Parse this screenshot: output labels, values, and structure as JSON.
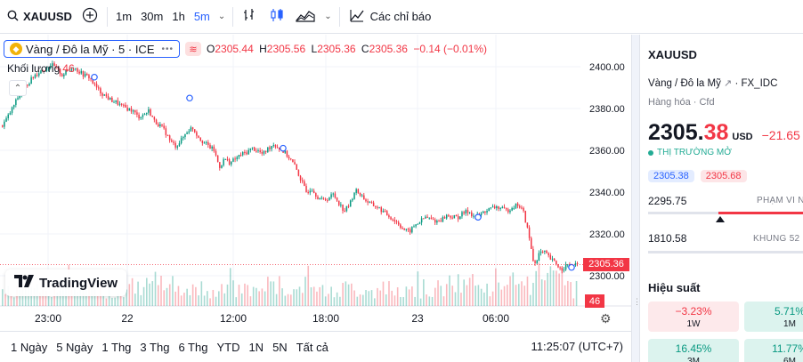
{
  "toolbar": {
    "symbol": "XAUUSD",
    "timeframes": [
      "1m",
      "30m",
      "1h",
      "5m"
    ],
    "active_timeframe": "5m",
    "indicators_label": "Các chỉ báo"
  },
  "legend": {
    "symbol_desc": "Vàng / Đô la Mỹ · 5 · ICE",
    "open_label": "O",
    "open": "2305.44",
    "high_label": "H",
    "high": "2305.56",
    "low_label": "L",
    "low": "2305.36",
    "close_label": "C",
    "close": "2305.36",
    "change": "−0.14 (−0.01%)",
    "volume_label": "Khối lượng",
    "volume": "46"
  },
  "branding": "TradingView",
  "colors": {
    "up": "#089981",
    "down": "#f23645",
    "accent": "#2962ff",
    "grid": "#f0f3fa"
  },
  "chart_data": {
    "type": "candlestick",
    "title": "",
    "xlabel": "",
    "ylabel": "",
    "ylim": [
      2293,
      2404
    ],
    "y_ticks": [
      "2400.00",
      "2380.00",
      "2360.00",
      "2340.00",
      "2320.00",
      "2300.00"
    ],
    "x_ticks": [
      "23:00",
      "22",
      "12:00",
      "18:00",
      "23",
      "06:00"
    ],
    "current_price": "2305.36",
    "volume_value": "46",
    "close_series": [
      2372,
      2376,
      2381,
      2386,
      2390,
      2393,
      2396,
      2398,
      2399,
      2401,
      2399,
      2396,
      2398,
      2400,
      2398,
      2396,
      2395,
      2391,
      2388,
      2386,
      2384,
      2383,
      2381,
      2380,
      2379,
      2376,
      2377,
      2379,
      2374,
      2372,
      2369,
      2364,
      2362,
      2365,
      2369,
      2371,
      2367,
      2364,
      2362,
      2360,
      2352,
      2356,
      2354,
      2356,
      2358,
      2359,
      2361,
      2360,
      2358,
      2361,
      2363,
      2361,
      2359,
      2356,
      2352,
      2346,
      2340,
      2342,
      2338,
      2336,
      2337,
      2339,
      2335,
      2331,
      2334,
      2341,
      2339,
      2336,
      2334,
      2333,
      2331,
      2329,
      2327,
      2325,
      2322,
      2321,
      2324,
      2326,
      2328,
      2327,
      2326,
      2327,
      2329,
      2328,
      2328,
      2330,
      2331,
      2328,
      2329,
      2331,
      2332,
      2333,
      2332,
      2331,
      2333,
      2334,
      2331,
      2320,
      2305,
      2311,
      2311,
      2308,
      2306,
      2303,
      2305,
      2304,
      2305.36
    ]
  },
  "bottombar": {
    "ranges": [
      "1 Ngày",
      "5 Ngày",
      "1 Thg",
      "3 Thg",
      "6 Thg",
      "YTD",
      "1N",
      "5N",
      "Tất cả"
    ],
    "clock": "11:25:07 (UTC+7)"
  },
  "panel": {
    "symbol": "XAUUSD",
    "description": "Vàng / Đô la Mỹ",
    "exchange": "· FX_IDC",
    "type": "Hàng hóa · Cfd",
    "price_main": "2305.",
    "price_last": "38",
    "currency": "USD",
    "change": "−21.65 (",
    "market_status": "THỊ TRƯỜNG MỞ",
    "bid": "2305.38",
    "ask": "2305.68",
    "day_low": "2295.75",
    "day_range_label": "PHẠM VI N",
    "year_low": "1810.58",
    "year_range_label": "KHUNG 52",
    "performance_title": "Hiệu suất",
    "performance": [
      {
        "value": "−3.23%",
        "period": "1W",
        "dir": "neg"
      },
      {
        "value": "5.71%",
        "period": "1M",
        "dir": "pos"
      },
      {
        "value": "16.45%",
        "period": "3M",
        "dir": "pos"
      },
      {
        "value": "11.77%",
        "period": "6M",
        "dir": "pos"
      }
    ]
  }
}
